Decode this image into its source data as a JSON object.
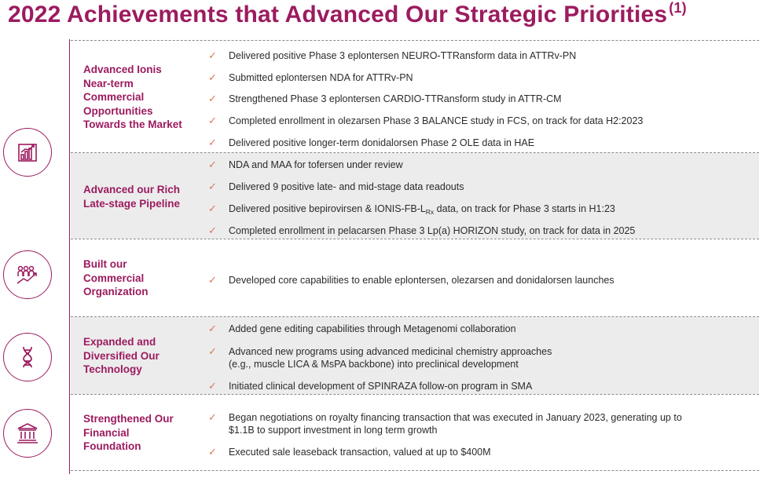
{
  "title": "2022 Achievements that Advanced Our Strategic Priorities",
  "title_footnote": "(1)",
  "colors": {
    "brand": "#9c1b5f",
    "check": "#d9785a",
    "shade": "#ececec",
    "text": "#2b2b2b"
  },
  "sections": [
    {
      "title": "Advanced Ionis Near-term Commercial Opportunities Towards the Market",
      "title_lines": [
        "Advanced Ionis",
        "Near-term",
        "Commercial",
        "Opportunities",
        "Towards the Market"
      ],
      "icon": "bar-chart-icon",
      "items": [
        [
          "Delivered positive Phase 3 eplontersen NEURO-TTRansform data in ATTRv-PN"
        ],
        [
          "Submitted eplontersen NDA for ATTRv-PN"
        ],
        [
          "Strengthened Phase 3 eplontersen CARDIO-TTRansform study in ATTR-CM"
        ],
        [
          "Completed enrollment in olezarsen Phase 3 BALANCE study in FCS, on track for data H2:2023"
        ],
        [
          "Delivered positive longer-term donidalorsen Phase 2 OLE data in HAE"
        ]
      ]
    },
    {
      "title": "Advanced our Rich Late-stage Pipeline",
      "title_lines": [
        "Advanced our Rich",
        "Late-stage Pipeline"
      ],
      "items": [
        [
          "NDA and MAA for tofersen under review"
        ],
        [
          "Delivered 9 positive late- and mid-stage data readouts"
        ],
        [
          "Delivered positive bepirovirsen & IONIS-FB-L",
          "Rx",
          " data, on track for Phase 3 starts in H1:23"
        ],
        [
          "Completed enrollment in pelacarsen Phase 3 Lp(a) HORIZON study, on track for data in 2025"
        ]
      ]
    },
    {
      "title": "Built our Commercial Organization",
      "title_lines": [
        "Built our",
        "Commercial",
        "Organization"
      ],
      "icon": "people-growth-icon",
      "items": [
        [
          "Developed core capabilities to enable eplontersen, olezarsen and donidalorsen launches"
        ]
      ]
    },
    {
      "title": "Expanded and Diversified Our Technology",
      "title_lines": [
        "Expanded and",
        "Diversified Our",
        "Technology"
      ],
      "icon": "dna-icon",
      "items": [
        [
          "Added gene editing capabilities through Metagenomi collaboration"
        ],
        [
          "Advanced new programs using advanced medicinal chemistry approaches",
          "(e.g., muscle LICA & MsPA backbone) into preclinical development"
        ],
        [
          "Initiated clinical development of SPINRAZA follow-on program in SMA"
        ]
      ]
    },
    {
      "title": "Strengthened Our Financial Foundation",
      "title_lines": [
        "Strengthened Our",
        "Financial",
        "Foundation"
      ],
      "icon": "bank-icon",
      "items": [
        [
          "Began negotiations on royalty financing transaction that was executed in January 2023, generating up to",
          "$1.1B to support investment in long term growth"
        ],
        [
          "Executed sale leaseback transaction, valued at up to $400M"
        ]
      ]
    }
  ],
  "check_glyph": "✓"
}
